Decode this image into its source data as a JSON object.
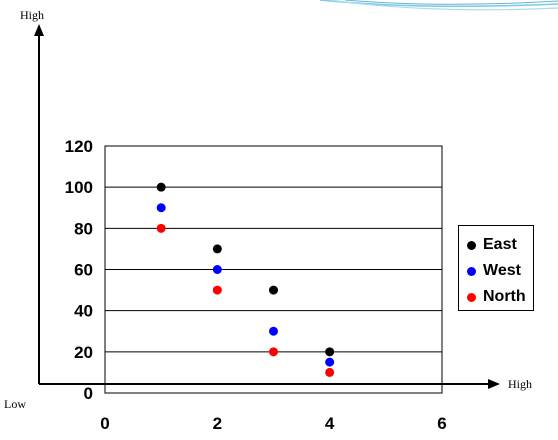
{
  "outer_axes": {
    "y_high_label": "High",
    "x_high_label": "High",
    "origin_low_label": "Low"
  },
  "chart_data": {
    "type": "scatter",
    "title": "",
    "xlabel": "",
    "ylabel": "",
    "xlim": [
      0,
      6
    ],
    "ylim": [
      0,
      120
    ],
    "x_ticks": [
      "0",
      "2",
      "4",
      "6"
    ],
    "y_ticks": [
      "0",
      "20",
      "40",
      "60",
      "80",
      "100",
      "120"
    ],
    "grid": "horizontal",
    "legend_position": "right",
    "series": [
      {
        "name": "East",
        "color": "#000000",
        "points": [
          [
            1,
            100
          ],
          [
            2,
            70
          ],
          [
            3,
            50
          ],
          [
            4,
            20
          ]
        ]
      },
      {
        "name": "West",
        "color": "#0000ff",
        "points": [
          [
            1,
            90
          ],
          [
            2,
            60
          ],
          [
            3,
            30
          ],
          [
            4,
            15
          ]
        ]
      },
      {
        "name": "North",
        "color": "#ff0000",
        "points": [
          [
            1,
            80
          ],
          [
            2,
            50
          ],
          [
            3,
            20
          ],
          [
            4,
            10
          ]
        ]
      }
    ]
  }
}
